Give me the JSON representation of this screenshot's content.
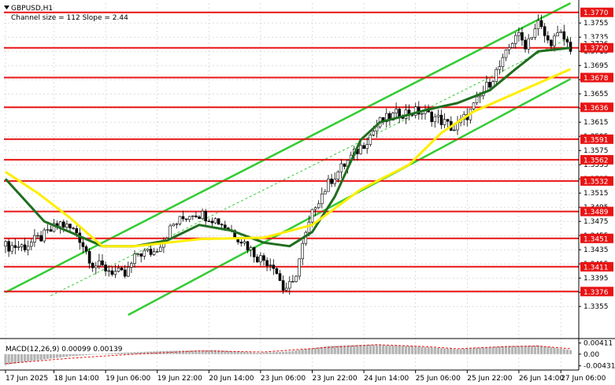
{
  "chart_data": {
    "type": "candlestick",
    "title": "GBPUSD,H1",
    "subtitle": "Channel size = 112 Slope = 2.44",
    "y_ticks": [
      "1.3755",
      "1.3735",
      "1.3715",
      "1.3695",
      "1.3675",
      "1.3655",
      "1.3635",
      "1.3615",
      "1.3595",
      "1.3575",
      "1.3555",
      "1.3535",
      "1.3515",
      "1.3495",
      "1.3475",
      "1.3455",
      "1.3435",
      "1.3415",
      "1.3395",
      "1.3375",
      "1.3355"
    ],
    "ylim": [
      1.3343,
      1.3783
    ],
    "current_price": "1.3720",
    "current_price_secondary": "1.3726",
    "levels": [
      {
        "label": "1.3770",
        "value": 1.377
      },
      {
        "label": "1.3720",
        "value": 1.372
      },
      {
        "label": "1.3678",
        "value": 1.3678
      },
      {
        "label": "1.3636",
        "value": 1.3636
      },
      {
        "label": "1.3591",
        "value": 1.3591
      },
      {
        "label": "1.3562",
        "value": 1.3562
      },
      {
        "label": "1.3532",
        "value": 1.3532
      },
      {
        "label": "1.3489",
        "value": 1.3489
      },
      {
        "label": "1.3451",
        "value": 1.3451
      },
      {
        "label": "1.3411",
        "value": 1.3411
      },
      {
        "label": "1.3376",
        "value": 1.3376
      }
    ],
    "x_labels": [
      "17 Jun 2025",
      "18 Jun 14:00",
      "19 Jun 06:00",
      "19 Jun 22:00",
      "20 Jun 14:00",
      "23 Jun 06:00",
      "23 Jun 22:00",
      "24 Jun 14:00",
      "25 Jun 06:00",
      "25 Jun 22:00",
      "26 Jun 14:00",
      "27 Jun 06:00"
    ],
    "close_anchors": [
      [
        0,
        1.344
      ],
      [
        6,
        1.344
      ],
      [
        12,
        1.3455
      ],
      [
        17,
        1.3472
      ],
      [
        22,
        1.346
      ],
      [
        27,
        1.3415
      ],
      [
        33,
        1.3405
      ],
      [
        37,
        1.3398
      ],
      [
        41,
        1.343
      ],
      [
        46,
        1.3432
      ],
      [
        52,
        1.347
      ],
      [
        58,
        1.3488
      ],
      [
        63,
        1.3482
      ],
      [
        66,
        1.3475
      ],
      [
        70,
        1.3462
      ],
      [
        74,
        1.3445
      ],
      [
        78,
        1.3425
      ],
      [
        83,
        1.3415
      ],
      [
        86,
        1.338
      ],
      [
        89,
        1.3385
      ],
      [
        92,
        1.344
      ],
      [
        96,
        1.35
      ],
      [
        101,
        1.3535
      ],
      [
        106,
        1.356
      ],
      [
        111,
        1.3585
      ],
      [
        116,
        1.3615
      ],
      [
        122,
        1.3628
      ],
      [
        128,
        1.363
      ],
      [
        134,
        1.362
      ],
      [
        139,
        1.3605
      ],
      [
        144,
        1.363
      ],
      [
        149,
        1.3665
      ],
      [
        154,
        1.37
      ],
      [
        158,
        1.374
      ],
      [
        161,
        1.3725
      ],
      [
        165,
        1.3755
      ],
      [
        168,
        1.3728
      ],
      [
        172,
        1.3738
      ],
      [
        175,
        1.372
      ]
    ],
    "series": [
      {
        "name": "MA fast",
        "color": "#1f6e1f",
        "x": [
          0,
          12,
          20,
          30,
          40,
          50,
          60,
          70,
          80,
          88,
          95,
          102,
          110,
          116,
          122,
          130,
          140,
          150,
          158,
          165,
          175
        ],
        "y": [
          1.3535,
          1.3475,
          1.346,
          1.344,
          1.344,
          1.3448,
          1.347,
          1.3462,
          1.3445,
          1.344,
          1.346,
          1.351,
          1.359,
          1.3615,
          1.3622,
          1.3632,
          1.3642,
          1.366,
          1.369,
          1.3715,
          1.372
        ]
      },
      {
        "name": "MA slow",
        "color": "#ffee00",
        "x": [
          0,
          10,
          20,
          30,
          40,
          60,
          80,
          95,
          110,
          125,
          135,
          145,
          155,
          165,
          175
        ],
        "y": [
          1.3545,
          1.3515,
          1.348,
          1.344,
          1.344,
          1.345,
          1.3452,
          1.347,
          1.352,
          1.3555,
          1.36,
          1.363,
          1.365,
          1.367,
          1.369
        ]
      },
      {
        "name": "Channel upper",
        "color": "#33cc33",
        "x": [
          0,
          175
        ],
        "y": [
          1.3375,
          1.3783
        ]
      },
      {
        "name": "Channel lower",
        "color": "#33cc33",
        "x": [
          38,
          175
        ],
        "y": [
          1.3343,
          1.3676
        ]
      },
      {
        "name": "Channel middle",
        "color": "#33cc33",
        "dash": true,
        "x": [
          14,
          175
        ],
        "y": [
          1.337,
          1.3735
        ]
      }
    ],
    "macd": {
      "label": "MACD(12,26,9) 0.00099 0.00139",
      "y_ticks": [
        "0.00411",
        "0.00",
        "-0.00431"
      ],
      "ylim": [
        -0.0047,
        0.0046
      ],
      "histogram_anchors": [
        [
          0,
          -0.004
        ],
        [
          8,
          -0.0025
        ],
        [
          20,
          -0.0008
        ],
        [
          35,
          0.0005
        ],
        [
          50,
          0.0012
        ],
        [
          65,
          0.0015
        ],
        [
          78,
          0.0005
        ],
        [
          88,
          0.001
        ],
        [
          100,
          0.003
        ],
        [
          112,
          0.0035
        ],
        [
          125,
          0.003
        ],
        [
          140,
          0.0018
        ],
        [
          155,
          0.003
        ],
        [
          165,
          0.0032
        ],
        [
          175,
          0.0015
        ]
      ],
      "signal_anchors": [
        [
          0,
          -0.0035
        ],
        [
          20,
          -0.0015
        ],
        [
          40,
          0.0
        ],
        [
          60,
          0.0012
        ],
        [
          80,
          0.0008
        ],
        [
          100,
          0.0025
        ],
        [
          115,
          0.0035
        ],
        [
          130,
          0.0028
        ],
        [
          140,
          0.002
        ],
        [
          155,
          0.0028
        ],
        [
          165,
          0.003
        ],
        [
          175,
          0.002
        ]
      ]
    },
    "grid": true,
    "colors": {
      "level": "#e81414",
      "bull": "#ffffff",
      "bear": "#000000",
      "axis": "#000000",
      "histogram": "#b4b4b4",
      "signal": "#e81414"
    }
  }
}
